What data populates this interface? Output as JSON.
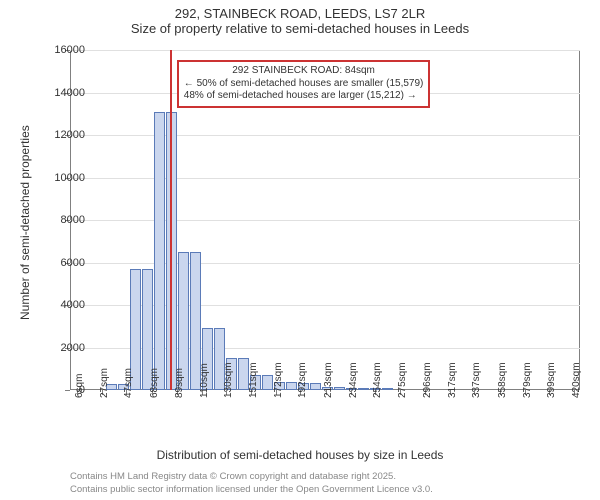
{
  "chart": {
    "type": "histogram",
    "title": "292, STAINBECK ROAD, LEEDS, LS7 2LR",
    "subtitle": "Size of property relative to semi-detached houses in Leeds",
    "ylabel": "Number of semi-detached properties",
    "xlabel": "Distribution of semi-detached houses by size in Leeds",
    "background_color": "#ffffff",
    "grid_color": "#e0e0e0",
    "axis_color": "#808080",
    "text_color": "#333333",
    "title_fontsize": 13,
    "label_fontsize": 12,
    "tick_fontsize": 11,
    "ylim": [
      0,
      16000
    ],
    "ytick_step": 2000,
    "yticks": [
      0,
      2000,
      4000,
      6000,
      8000,
      10000,
      12000,
      14000,
      16000
    ],
    "xticks": [
      "6sqm",
      "27sqm",
      "47sqm",
      "68sqm",
      "89sqm",
      "110sqm",
      "130sqm",
      "151sqm",
      "172sqm",
      "192sqm",
      "213sqm",
      "234sqm",
      "254sqm",
      "275sqm",
      "296sqm",
      "317sqm",
      "337sqm",
      "358sqm",
      "379sqm",
      "399sqm",
      "420sqm"
    ],
    "bar_fill": "#cad6ee",
    "bar_stroke": "#5b7bb8",
    "bar_width": 0.95,
    "bin_width_sqm": 10,
    "x_range_sqm": [
      0,
      425
    ],
    "bins": [
      {
        "start": 0,
        "v": 0
      },
      {
        "start": 10,
        "v": 0
      },
      {
        "start": 20,
        "v": 0
      },
      {
        "start": 30,
        "v": 300
      },
      {
        "start": 40,
        "v": 300
      },
      {
        "start": 50,
        "v": 5700
      },
      {
        "start": 60,
        "v": 5700
      },
      {
        "start": 70,
        "v": 13100
      },
      {
        "start": 80,
        "v": 13100
      },
      {
        "start": 90,
        "v": 6500
      },
      {
        "start": 100,
        "v": 6500
      },
      {
        "start": 110,
        "v": 2900
      },
      {
        "start": 120,
        "v": 2900
      },
      {
        "start": 130,
        "v": 1500
      },
      {
        "start": 140,
        "v": 1500
      },
      {
        "start": 150,
        "v": 700
      },
      {
        "start": 160,
        "v": 700
      },
      {
        "start": 170,
        "v": 400
      },
      {
        "start": 180,
        "v": 400
      },
      {
        "start": 190,
        "v": 350
      },
      {
        "start": 200,
        "v": 350
      },
      {
        "start": 210,
        "v": 150
      },
      {
        "start": 220,
        "v": 150
      },
      {
        "start": 230,
        "v": 100
      },
      {
        "start": 240,
        "v": 100
      },
      {
        "start": 250,
        "v": 50
      },
      {
        "start": 260,
        "v": 50
      },
      {
        "start": 270,
        "v": 0
      },
      {
        "start": 280,
        "v": 0
      },
      {
        "start": 290,
        "v": 0
      },
      {
        "start": 300,
        "v": 0
      }
    ],
    "reference": {
      "x_sqm": 84,
      "color": "#cc3333",
      "line_width": 2,
      "callout": {
        "border_color": "#cc3333",
        "bg_color": "#ffffff",
        "lines": [
          "292 STAINBECK ROAD: 84sqm",
          "← 50% of semi-detached houses are smaller (15,579)",
          "48% of semi-detached houses are larger (15,212) →"
        ]
      }
    },
    "attribution": [
      "Contains HM Land Registry data © Crown copyright and database right 2025.",
      "Contains public sector information licensed under the Open Government Licence v3.0."
    ]
  }
}
